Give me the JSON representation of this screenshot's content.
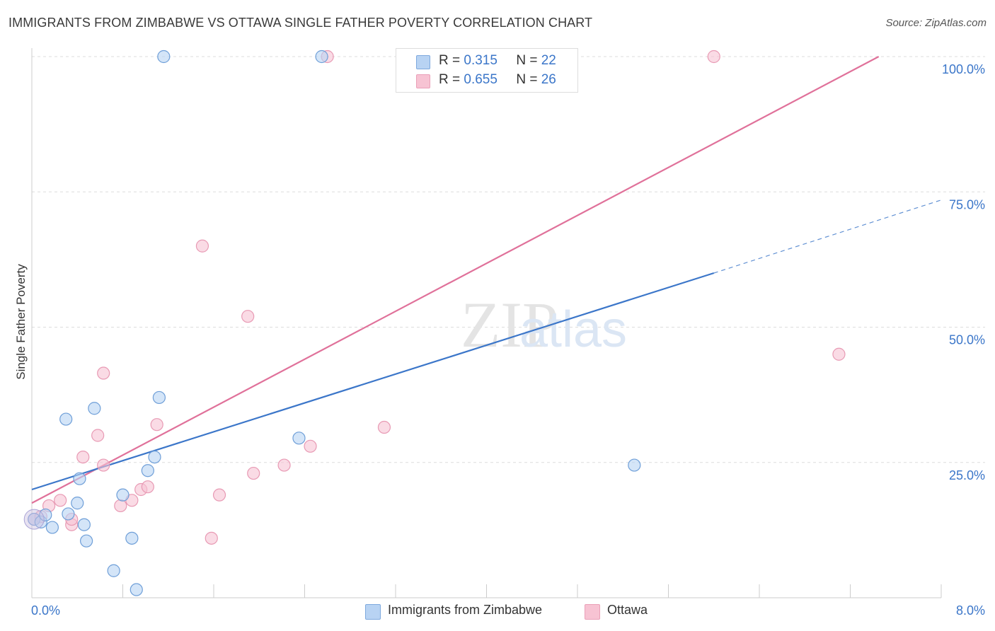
{
  "title": "IMMIGRANTS FROM ZIMBABWE VS OTTAWA SINGLE FATHER POVERTY CORRELATION CHART",
  "source": "Source: ZipAtlas.com",
  "legend_top": {
    "row1": {
      "r_label": "R =",
      "r_value": "0.315",
      "n_label": "N =",
      "n_value": "22"
    },
    "row2": {
      "r_label": "R =",
      "r_value": "0.655",
      "n_label": "N =",
      "n_value": "26"
    }
  },
  "watermark": {
    "zip": "ZIP",
    "atlas": "atlas"
  },
  "colors": {
    "blue": "#3b76c9",
    "blue_fill": "#b8d3f3",
    "pink": "#e0719a",
    "pink_fill": "#f7c3d3",
    "grid": "#dddddd"
  },
  "chart_data": {
    "type": "scatter",
    "ylabel": "Single Father Poverty",
    "xlim": [
      0,
      8
    ],
    "ylim": [
      0,
      100
    ],
    "x_tick_labels": [
      {
        "value": 0,
        "label": "0.0%"
      },
      {
        "value": 8,
        "label": "8.0%"
      }
    ],
    "y_tick_labels": [
      {
        "value": 25,
        "label": "25.0%"
      },
      {
        "value": 50,
        "label": "50.0%"
      },
      {
        "value": 75,
        "label": "75.0%"
      },
      {
        "value": 100,
        "label": "100.0%"
      }
    ],
    "grid": true,
    "legend_position": "top-center and bottom",
    "series": [
      {
        "name": "Immigrants from Zimbabwe",
        "color": "#3b76c9",
        "points": [
          [
            0.02,
            14.5
          ],
          [
            0.08,
            14.0
          ],
          [
            0.12,
            15.3
          ],
          [
            0.18,
            13.0
          ],
          [
            0.3,
            33.0
          ],
          [
            0.32,
            15.5
          ],
          [
            0.4,
            17.5
          ],
          [
            0.42,
            22.0
          ],
          [
            0.46,
            13.5
          ],
          [
            0.48,
            10.5
          ],
          [
            0.55,
            35.0
          ],
          [
            0.72,
            5.0
          ],
          [
            0.8,
            19.0
          ],
          [
            0.88,
            11.0
          ],
          [
            0.92,
            1.5
          ],
          [
            1.02,
            23.5
          ],
          [
            1.08,
            26.0
          ],
          [
            1.12,
            37.0
          ],
          [
            1.16,
            100.0
          ],
          [
            2.55,
            100.0
          ],
          [
            2.35,
            29.5
          ],
          [
            5.3,
            24.5
          ]
        ],
        "trend": {
          "x0": 0,
          "y0": 20.0,
          "x1": 6.0,
          "y1": 60.0,
          "dash_x1": 8.0,
          "dash_y1": 73.5
        }
      },
      {
        "name": "Ottawa",
        "color": "#e0719a",
        "points": [
          [
            0.02,
            14.5
          ],
          [
            0.15,
            17.0
          ],
          [
            0.25,
            18.0
          ],
          [
            0.35,
            13.5
          ],
          [
            0.45,
            26.0
          ],
          [
            0.58,
            30.0
          ],
          [
            0.63,
            24.5
          ],
          [
            0.63,
            41.5
          ],
          [
            0.78,
            17.0
          ],
          [
            0.88,
            18.0
          ],
          [
            0.96,
            20.0
          ],
          [
            1.02,
            20.5
          ],
          [
            1.1,
            32.0
          ],
          [
            1.5,
            65.0
          ],
          [
            1.58,
            11.0
          ],
          [
            1.65,
            19.0
          ],
          [
            1.9,
            52.0
          ],
          [
            1.95,
            23.0
          ],
          [
            2.22,
            24.5
          ],
          [
            2.45,
            28.0
          ],
          [
            2.6,
            100.0
          ],
          [
            3.1,
            31.5
          ],
          [
            6.0,
            100.0
          ],
          [
            7.1,
            45.0
          ],
          [
            0.08,
            15.0
          ],
          [
            0.35,
            14.5
          ]
        ],
        "trend": {
          "x0": 0,
          "y0": 17.5,
          "x1": 7.45,
          "y1": 100.0
        }
      }
    ]
  }
}
